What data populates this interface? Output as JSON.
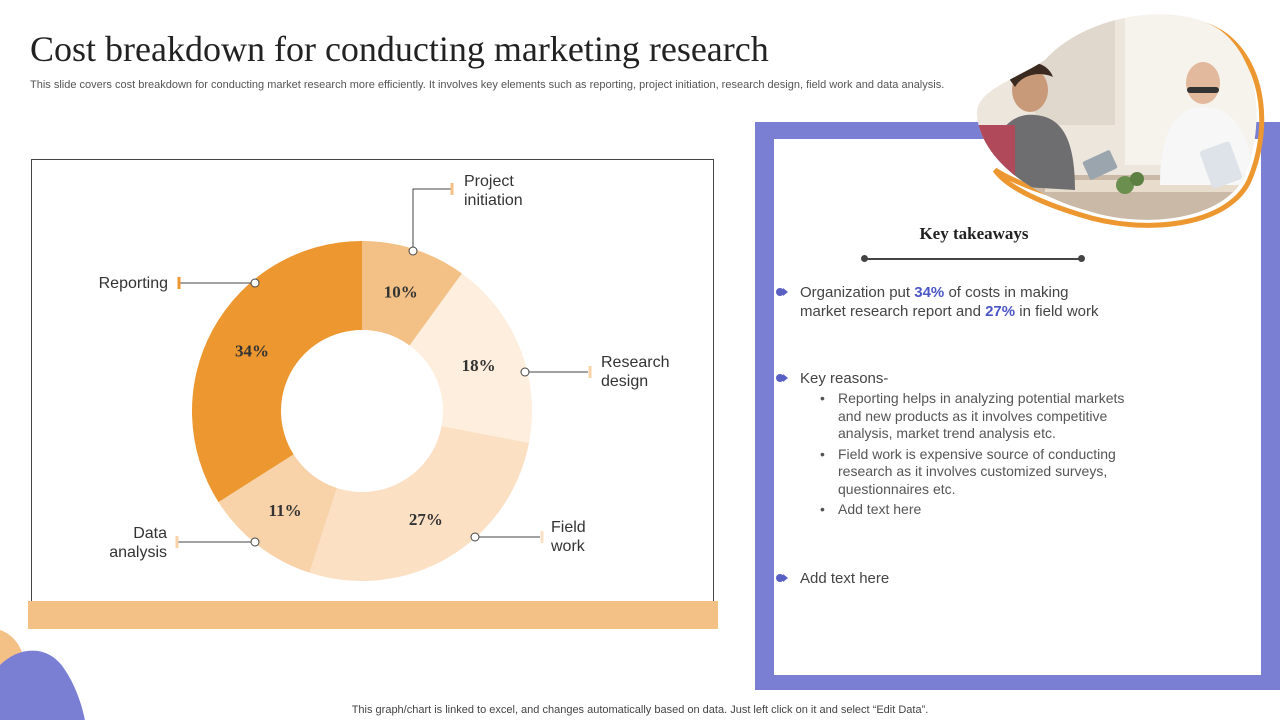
{
  "title": "Cost breakdown for conducting marketing research",
  "subtitle": "This slide covers cost breakdown for conducting market research more efficiently. It involves key elements such as reporting, project initiation, research design, field work and data analysis.",
  "chart_data": {
    "type": "pie",
    "donut": true,
    "categories": [
      "Project initiation",
      "Research design",
      "Field work",
      "Data analysis",
      "Reporting"
    ],
    "values": [
      10,
      18,
      27,
      11,
      34
    ],
    "value_labels": [
      "10%",
      "18%",
      "27%",
      "11%",
      "34%"
    ],
    "colors": [
      "#F3C085",
      "#FDEEDD",
      "#FBE0C4",
      "#F8D3AA",
      "#EC972F"
    ],
    "label_lines": [
      [
        "Project",
        "initiation"
      ],
      [
        "Research",
        "design"
      ],
      [
        "Field",
        "work"
      ],
      [
        "Data",
        "analysis"
      ],
      [
        "Reporting"
      ]
    ]
  },
  "takeaways": {
    "heading": "Key takeaways",
    "point1": {
      "t1": "Organization put ",
      "h1": "34%",
      "t2": " of costs in making",
      "t3": "market research report and ",
      "h2": "27%",
      "t4": " in field work"
    },
    "point2_heading": "Key reasons-",
    "reasons": [
      "Reporting helps in analyzing potential markets and new products as it involves competitive analysis, market trend analysis etc.",
      "Field work is expensive source of conducting research as it involves customized surveys, questionnaires etc.",
      "Add text here"
    ],
    "point3": "Add text here"
  },
  "footer": "This graph/chart is linked to excel,  and changes automatically based on data. Just left click on it and select “Edit Data”.",
  "colors": {
    "accent": "#4A56C4",
    "panel": "#7B7FD4",
    "orange": "#EC972F"
  }
}
